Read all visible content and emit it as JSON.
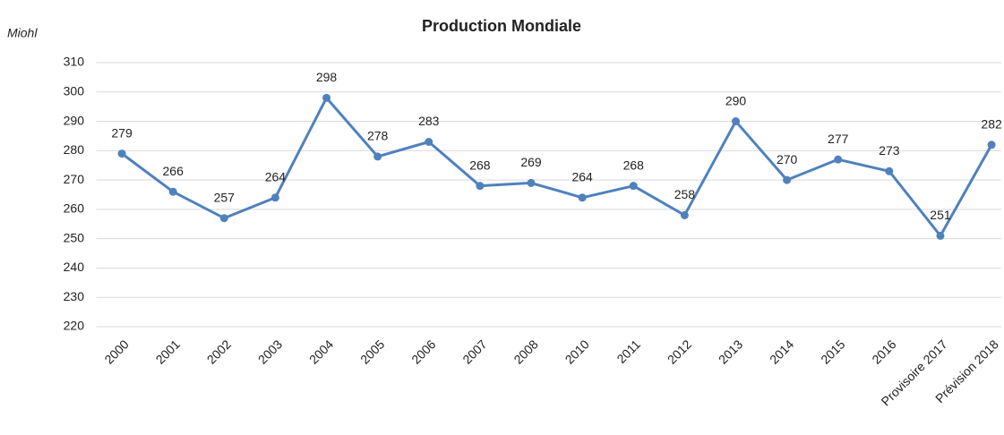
{
  "chart_data": {
    "type": "line",
    "title": "Production Mondiale",
    "y_label": "Miohl",
    "categories": [
      "2000",
      "2001",
      "2002",
      "2003",
      "2004",
      "2005",
      "2006",
      "2007",
      "2008",
      "2010",
      "2011",
      "2012",
      "2013",
      "2014",
      "2015",
      "2016",
      "Provisoire 2017",
      "Prévision 2018"
    ],
    "values": [
      279,
      266,
      257,
      264,
      298,
      278,
      283,
      268,
      269,
      264,
      268,
      258,
      290,
      270,
      277,
      273,
      251,
      282
    ],
    "color": "#4f81bd",
    "ylim": [
      220,
      310
    ],
    "yticks": [
      220,
      230,
      240,
      250,
      260,
      270,
      280,
      290,
      300,
      310
    ],
    "grid": true
  }
}
